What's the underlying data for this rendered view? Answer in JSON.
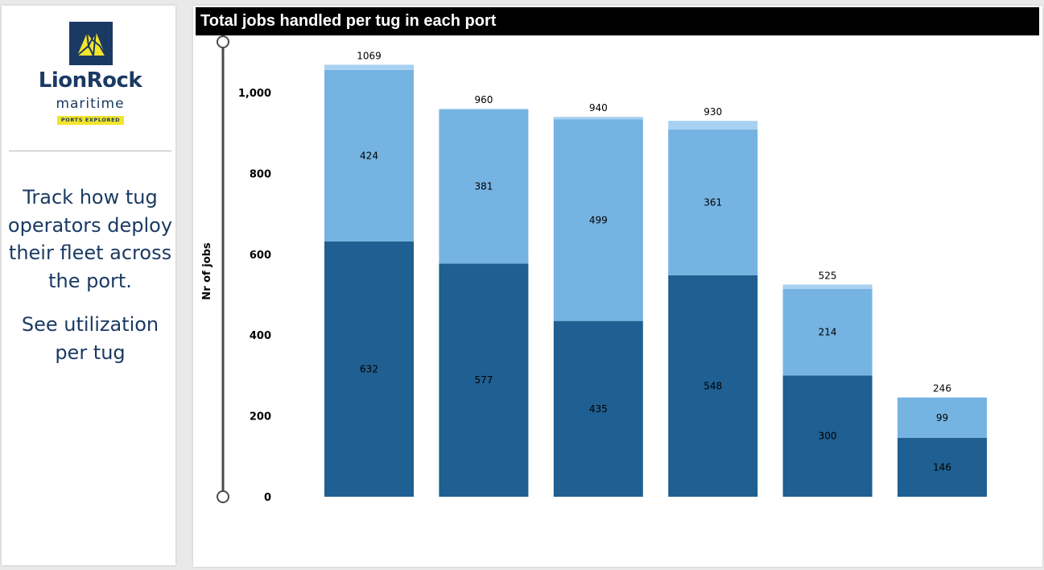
{
  "sidebar": {
    "logo": {
      "name": "LionRock",
      "sub": "maritime",
      "tagline": "PORTS EXPLORED"
    },
    "blurb_1": [
      "Track how tug",
      "operators deploy",
      "their fleet across",
      "the port."
    ],
    "blurb_2": [
      "See utilization",
      "per tug"
    ]
  },
  "colors": {
    "dark_blue": "#1f5f91",
    "light_blue": "#75b3e2",
    "top_cap": "#a8d0f0",
    "brand_navy": "#1b3a63",
    "brand_yellow": "#f2e52b"
  },
  "chart_data": {
    "type": "bar",
    "stacked": true,
    "title": "Total jobs handled per tug in each port",
    "ylabel": "Nr of jobs",
    "xlabel": "",
    "ylim": [
      0,
      1100
    ],
    "yticks": [
      0,
      200,
      400,
      600,
      800,
      1000
    ],
    "ytick_labels": [
      "0",
      "200",
      "400",
      "600",
      "800",
      "1,000"
    ],
    "series": [
      {
        "values": [
          632,
          577,
          435,
          548,
          300,
          146
        ]
      },
      {
        "values": [
          424,
          381,
          499,
          361,
          214,
          99
        ]
      },
      {
        "values": [
          13,
          2,
          6,
          21,
          11,
          1
        ]
      }
    ],
    "totals": [
      1069,
      960,
      940,
      930,
      525,
      246
    ]
  }
}
